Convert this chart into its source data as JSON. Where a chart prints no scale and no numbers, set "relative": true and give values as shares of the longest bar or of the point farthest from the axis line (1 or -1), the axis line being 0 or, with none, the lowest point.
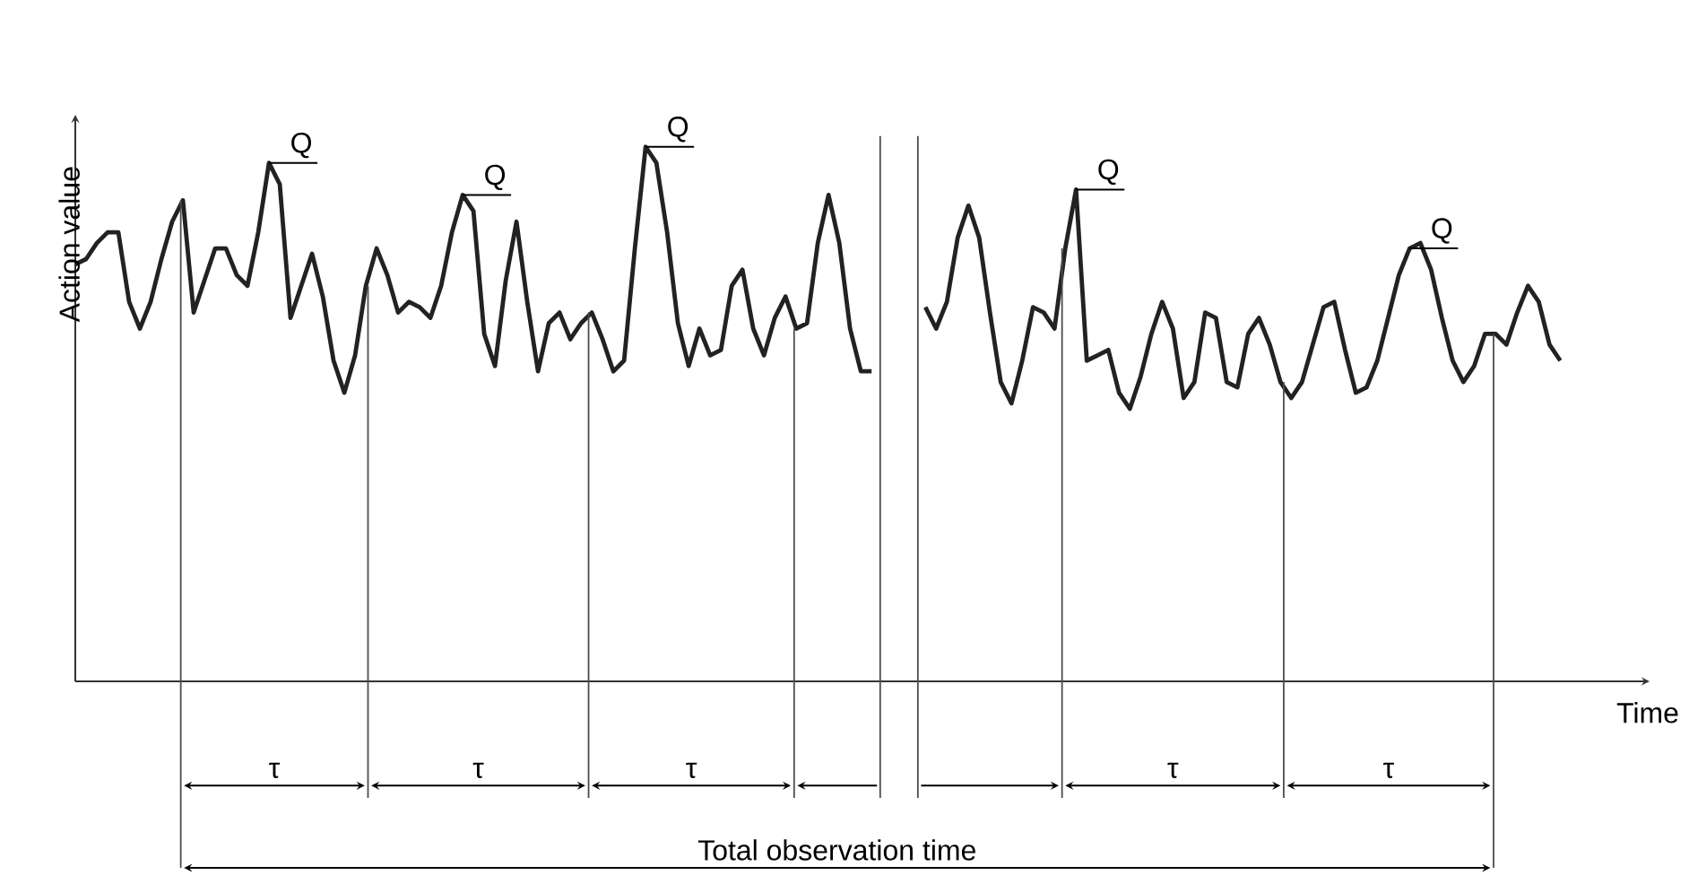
{
  "chart_data": {
    "type": "line",
    "xlabel": "Time",
    "ylabel": "Action value",
    "relative": true,
    "line_style": "solid",
    "categories": [
      null,
      null,
      null,
      null,
      null,
      null,
      null,
      null,
      null,
      null,
      null,
      null,
      null,
      null,
      null,
      null,
      null,
      null,
      null,
      null,
      null,
      null,
      null,
      null,
      null,
      null,
      null,
      null,
      null,
      null,
      null,
      null,
      null,
      null,
      null,
      null,
      null,
      null,
      null,
      null,
      null,
      null,
      null,
      null,
      null,
      null,
      null,
      null,
      null,
      null,
      null,
      null,
      null,
      null,
      null,
      null,
      null,
      null,
      null,
      null,
      null,
      null,
      null,
      null,
      null,
      null,
      null,
      null,
      null,
      null,
      null,
      null,
      null,
      null,
      null,
      null,
      null,
      null,
      null,
      null,
      null,
      null,
      null,
      null,
      null,
      null,
      null,
      null,
      null,
      null,
      null,
      null,
      null,
      null,
      null,
      null,
      null,
      null,
      null,
      null,
      null,
      null,
      null,
      null,
      null,
      null,
      null,
      null,
      null,
      null,
      null,
      null,
      null,
      null,
      null,
      null,
      null,
      null,
      null,
      null,
      null,
      null,
      null,
      null,
      null,
      null,
      null,
      null,
      null,
      null,
      null,
      null,
      null,
      null,
      null,
      null,
      null,
      null,
      null
    ],
    "series": [
      {
        "color": "#222222",
        "values": [
          0.78,
          0.79,
          0.82,
          0.84,
          0.84,
          0.71,
          0.66,
          0.71,
          0.79,
          0.86,
          0.9,
          0.69,
          0.75,
          0.81,
          0.81,
          0.76,
          0.74,
          0.84,
          0.97,
          0.93,
          0.68,
          0.74,
          0.8,
          0.72,
          0.6,
          0.54,
          0.61,
          0.74,
          0.81,
          0.76,
          0.69,
          0.71,
          0.7,
          0.68,
          0.74,
          0.84,
          0.91,
          0.88,
          0.65,
          0.59,
          0.75,
          0.86,
          0.71,
          0.58,
          0.67,
          0.69,
          0.64,
          0.67,
          0.69,
          0.64,
          0.58,
          0.6,
          0.81,
          1.0,
          0.97,
          0.84,
          0.67,
          0.59,
          0.66,
          0.61,
          0.62,
          0.74,
          0.77,
          0.66,
          0.61,
          0.68,
          0.72,
          0.66,
          0.67,
          0.82,
          0.91,
          0.82,
          0.66,
          0.58,
          0.58,
          null,
          null,
          null,
          null,
          null,
          null,
          null,
          null,
          null,
          null,
          null,
          null,
          null,
          null,
          null,
          null,
          null,
          null,
          null,
          null,
          null,
          null,
          null,
          null,
          null,
          null,
          null,
          null,
          null,
          null,
          null,
          null,
          null,
          null,
          null,
          null,
          null,
          null,
          null,
          null,
          null,
          null,
          null,
          null,
          null,
          null,
          null,
          null,
          null,
          null,
          null,
          null,
          null,
          null,
          null,
          null,
          null,
          null,
          null,
          null,
          null,
          null,
          null,
          null
        ]
      },
      {
        "color": "#222222",
        "values": [
          null,
          null,
          null,
          null,
          null,
          null,
          null,
          null,
          null,
          null,
          null,
          null,
          null,
          null,
          null,
          null,
          null,
          null,
          null,
          null,
          null,
          null,
          null,
          null,
          null,
          null,
          null,
          null,
          null,
          null,
          null,
          null,
          null,
          null,
          null,
          null,
          null,
          null,
          null,
          null,
          null,
          null,
          null,
          null,
          null,
          null,
          null,
          null,
          null,
          null,
          null,
          null,
          null,
          null,
          null,
          null,
          null,
          null,
          null,
          null,
          null,
          null,
          null,
          null,
          null,
          null,
          null,
          null,
          null,
          null,
          null,
          null,
          null,
          null,
          null,
          null,
          null,
          null,
          null,
          0.7,
          0.66,
          0.71,
          0.83,
          0.89,
          0.83,
          0.69,
          0.56,
          0.52,
          0.6,
          0.7,
          0.69,
          0.66,
          0.81,
          0.92,
          0.6,
          0.61,
          0.62,
          0.54,
          0.51,
          0.57,
          0.65,
          0.71,
          0.66,
          0.53,
          0.56,
          0.69,
          0.68,
          0.56,
          0.55,
          0.65,
          0.68,
          0.63,
          0.56,
          0.53,
          0.56,
          0.63,
          0.7,
          0.71,
          0.62,
          0.54,
          0.55,
          0.6,
          0.68,
          0.76,
          0.81,
          0.82,
          0.77,
          0.68,
          0.6,
          0.56,
          0.59,
          0.65,
          0.65,
          0.63,
          0.69,
          0.74,
          0.71,
          0.63,
          0.6
        ]
      }
    ],
    "annotations": [
      "Q",
      "Q",
      "Q",
      "Q",
      "Q",
      "τ",
      "τ",
      "τ",
      "τ",
      "τ",
      "Total observation time"
    ]
  }
}
